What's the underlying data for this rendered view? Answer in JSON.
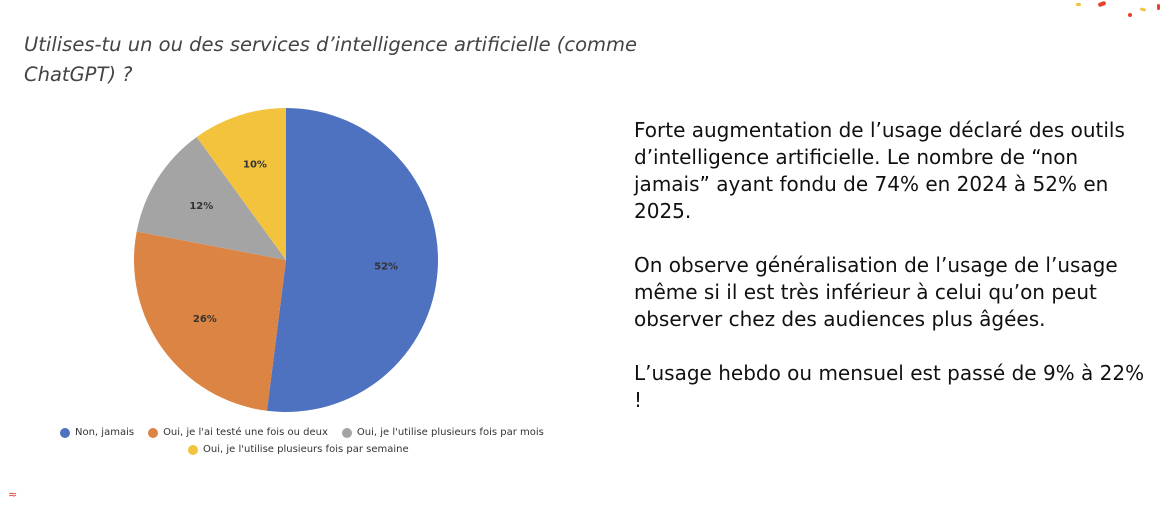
{
  "question": "Utilises-tu un ou des services d’intelligence artificielle (comme ChatGPT) ?",
  "chart_data": {
    "type": "pie",
    "title": "",
    "slices": [
      {
        "label": "Non, jamais",
        "value": 52,
        "display": "52%",
        "color": "#4e72c0"
      },
      {
        "label": "Oui, je l'ai testé une fois ou deux",
        "value": 26,
        "display": "26%",
        "color": "#dc8443"
      },
      {
        "label": "Oui, je l'utilise plusieurs fois par mois",
        "value": 12,
        "display": "12%",
        "color": "#a4a4a4"
      },
      {
        "label": "Oui, je l'utilise plusieurs fois par semaine",
        "value": 10,
        "display": "10%",
        "color": "#f4c33d"
      }
    ],
    "legend_position": "bottom"
  },
  "commentary": {
    "p1": "Forte augmentation de l’usage déclaré des outils d’intelligence artificielle. Le nombre de “non jamais” ayant fondu de 74% en 2024 à 52% en 2025.",
    "p2": "On observe généralisation de l’usage de l’usage même si il est très inférieur à celui qu’on peut observer chez des audiences plus âgées.",
    "p3": "L’usage hebdo ou mensuel est passé de 9% à 22% !"
  },
  "decor": {
    "accent_colors": [
      "#e8412c",
      "#f4c33d",
      "#4e72c0",
      "#dc8443"
    ]
  }
}
